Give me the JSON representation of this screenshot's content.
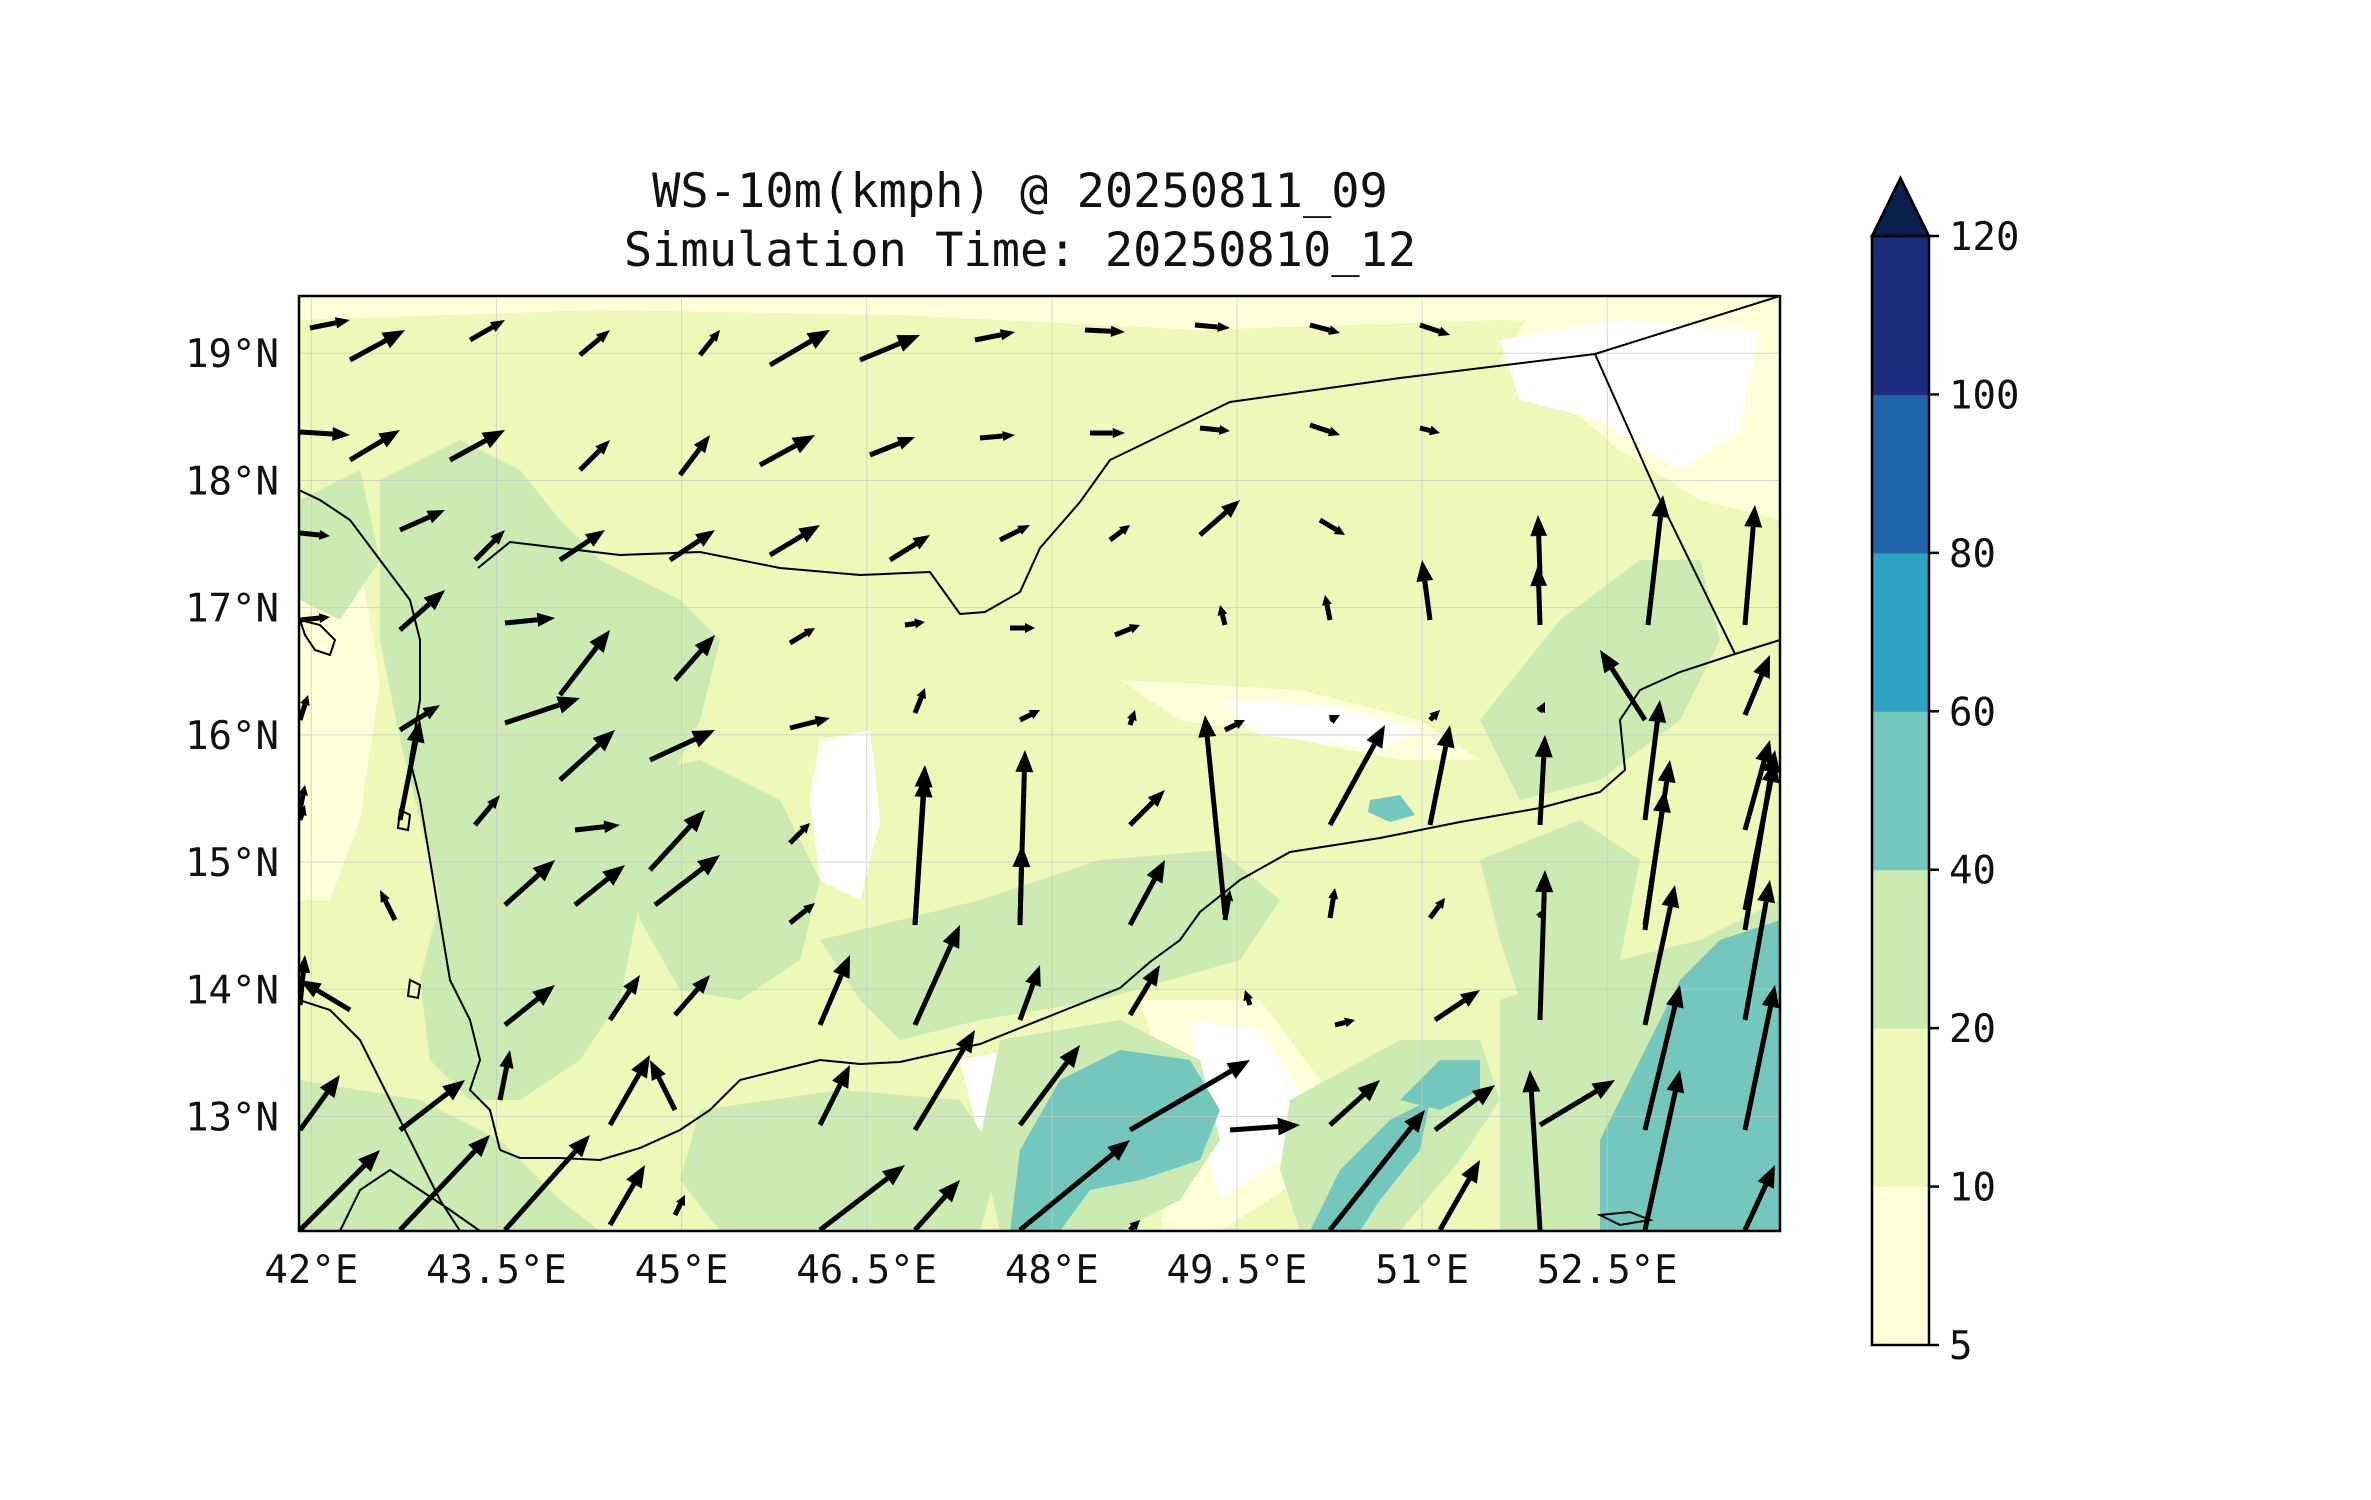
{
  "title": {
    "line1": "WS-10m(kmph) @ 20250811_09",
    "line2": "Simulation Time: 20250810_12"
  },
  "map": {
    "lon_range": [
      41.9,
      53.9
    ],
    "lat_range": [
      12.1,
      19.45
    ],
    "lon_ticks": [
      "42°E",
      "43.5°E",
      "45°E",
      "46.5°E",
      "48°E",
      "49.5°E",
      "51°E",
      "52.5°E"
    ],
    "lat_ticks": [
      "19°N",
      "18°N",
      "17°N",
      "16°N",
      "15°N",
      "14°N",
      "13°N"
    ],
    "grid": true
  },
  "colorbar": {
    "ticks": [
      "5",
      "10",
      "20",
      "40",
      "60",
      "80",
      "100",
      "120"
    ],
    "colors": [
      "#ffffd9",
      "#eef8b8",
      "#cbebb3",
      "#74c7bd",
      "#2ea2c3",
      "#2163a8",
      "#1b2b7c"
    ],
    "extend_color": "#0b1f4d",
    "extend": "max"
  },
  "colors": {
    "land_base": "#eef8b8",
    "calm": "#ffffff",
    "moderate": "#cbebb3",
    "strong": "#74c7bd",
    "border": "#000000",
    "arrow": "#000000"
  }
}
